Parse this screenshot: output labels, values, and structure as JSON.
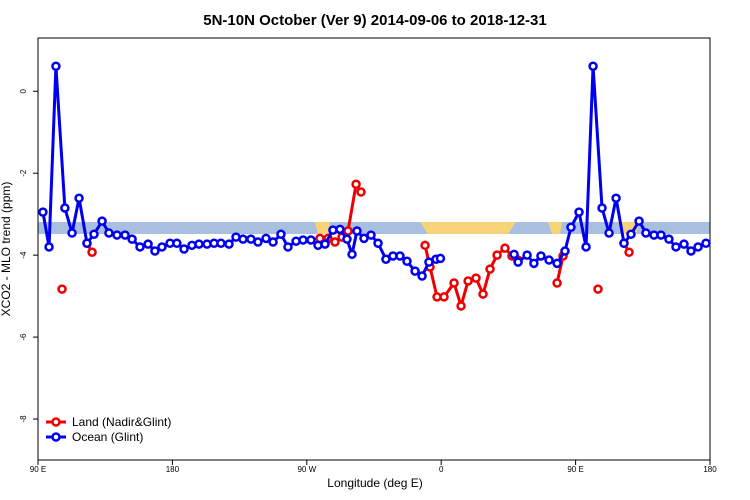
{
  "chart_data": {
    "type": "line",
    "title": "5N-10N October (Ver 9)   2014-09-06 to 2018-12-31",
    "x_label": "Longitude (deg E)",
    "y_label": "XCO2 - MLO trend (ppm)",
    "xlim": [
      90,
      540
    ],
    "ylim": [
      -9,
      1.3
    ],
    "xticks": [
      {
        "value": 90,
        "label": "90 E"
      },
      {
        "value": 180,
        "label": "180"
      },
      {
        "value": 270,
        "label": "90 W"
      },
      {
        "value": 360,
        "label": "0"
      },
      {
        "value": 450,
        "label": "90 E"
      },
      {
        "value": 540,
        "label": "180"
      }
    ],
    "yticks": [
      0,
      -2,
      -4,
      -6,
      -8
    ],
    "legend": "bottom-left",
    "series": [
      {
        "name": "Land (Nadir&Glint)",
        "color": "#ee0000",
        "x": [
          106.1,
          null,
          122.8,
          126.2,
          null,
          278.8,
          284.2,
          288.9,
          293.6,
          297.6,
          303.0,
          306.3,
          null,
          349.2,
          352.5,
          357.2,
          361.9,
          368.6,
          373.3,
          378.0,
          383.3,
          388.0,
          392.7,
          397.4,
          402.7,
          407.4,
          411.4,
          null,
          437.6,
          441.6,
          null,
          465.0,
          null,
          482.4,
          485.8
        ],
        "values": [
          -4.83,
          null,
          -3.71,
          -3.93,
          null,
          -3.59,
          -3.59,
          -3.68,
          -3.56,
          -3.41,
          -2.27,
          -2.46,
          null,
          -3.76,
          -4.29,
          -5.02,
          -5.02,
          -4.68,
          -5.24,
          -4.63,
          -4.56,
          -4.95,
          -4.34,
          -4.0,
          -3.83,
          -4.02,
          -4.12,
          null,
          -4.68,
          -4.02,
          null,
          -4.83,
          null,
          -3.71,
          -3.93
        ]
      },
      {
        "name": "Ocean (Glint)",
        "color": "#0000ee",
        "x": [
          93.3,
          97.4,
          102.0,
          108.0,
          112.8,
          117.5,
          122.8,
          127.5,
          132.9,
          137.5,
          142.9,
          148.3,
          153.0,
          158.3,
          163.7,
          168.3,
          173.0,
          178.4,
          183.0,
          187.8,
          193.1,
          197.8,
          203.2,
          207.9,
          212.5,
          217.9,
          222.6,
          227.3,
          232.6,
          237.3,
          242.7,
          247.4,
          252.7,
          257.4,
          262.8,
          267.5,
          272.8,
          277.5,
          282.2,
          287.5,
          292.2,
          296.9,
          300.3,
          303.6,
          308.3,
          313.0,
          317.7,
          323.0,
          327.7,
          332.4,
          337.1,
          342.5,
          347.2,
          351.8,
          356.5,
          359.5,
          null,
          408.8,
          411.5,
          417.5,
          422.1,
          426.8,
          432.2,
          437.6,
          442.9,
          446.9,
          452.3,
          457.0,
          461.7,
          467.7,
          472.4,
          477.1,
          482.4,
          487.1,
          492.5,
          497.1,
          502.5,
          507.2,
          512.5,
          517.2,
          522.6,
          527.3,
          532.0,
          537.3
        ],
        "values": [
          -2.95,
          -3.8,
          0.61,
          -2.85,
          -3.46,
          -2.61,
          -3.71,
          -3.49,
          -3.17,
          -3.46,
          -3.51,
          -3.51,
          -3.61,
          -3.8,
          -3.73,
          -3.9,
          -3.8,
          -3.71,
          -3.71,
          -3.85,
          -3.76,
          -3.73,
          -3.73,
          -3.71,
          -3.71,
          -3.73,
          -3.56,
          -3.61,
          -3.61,
          -3.68,
          -3.59,
          -3.68,
          -3.49,
          -3.8,
          -3.66,
          -3.63,
          -3.63,
          -3.76,
          -3.73,
          -3.39,
          -3.37,
          -3.61,
          -3.98,
          -3.41,
          -3.59,
          -3.51,
          -3.71,
          -4.1,
          -4.02,
          -4.02,
          -4.15,
          -4.39,
          -4.51,
          -4.17,
          -4.1,
          -4.08,
          null,
          -3.98,
          -4.17,
          -4.0,
          -4.2,
          -4.02,
          -4.12,
          -4.2,
          -3.9,
          -3.32,
          -2.95,
          -3.8,
          0.61,
          -2.85,
          -3.46,
          -2.61,
          -3.71,
          -3.49,
          -3.17,
          -3.46,
          -3.51,
          -3.51,
          -3.61,
          -3.8,
          -3.73,
          -3.9,
          -3.8,
          -3.71
        ]
      }
    ]
  }
}
